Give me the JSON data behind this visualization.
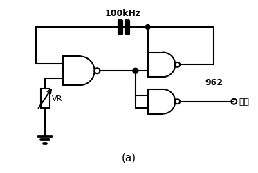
{
  "title": "(a)",
  "freq_label": "100kHz",
  "label_962": "962",
  "label_output": "输出",
  "label_vr": "VR",
  "bg_color": "#ffffff",
  "line_color": "#000000",
  "lw": 1.5,
  "fig_width": 3.73,
  "fig_height": 2.51,
  "dpi": 100
}
